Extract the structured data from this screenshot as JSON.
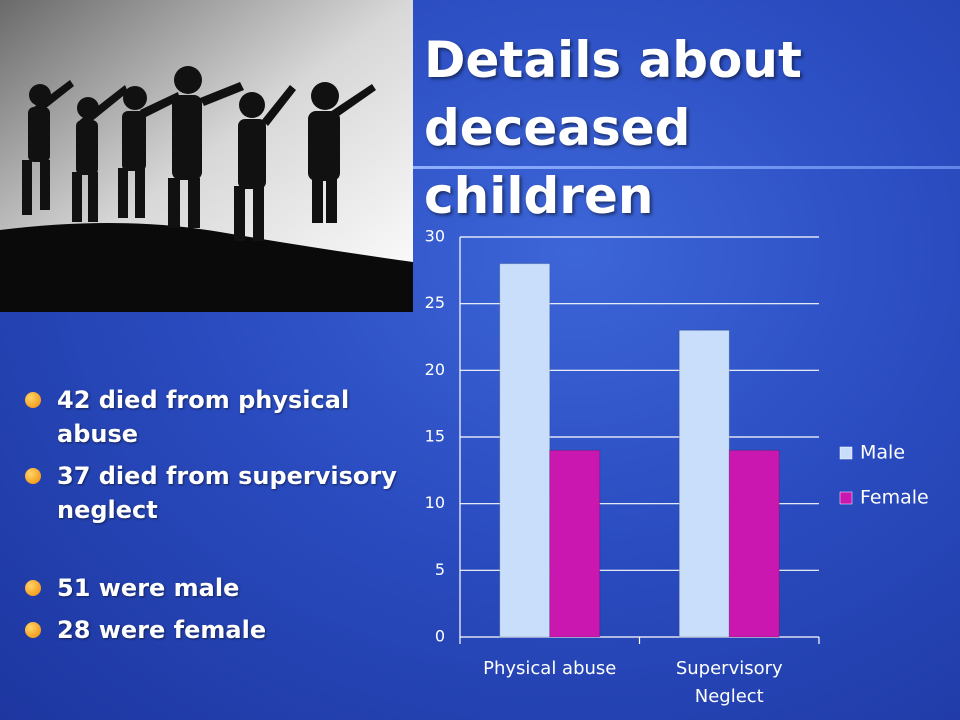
{
  "title": "Details about deceased children",
  "bullets": [
    "42 died from physical abuse",
    "37 died from supervisory neglect",
    "51 were male",
    "28 were female"
  ],
  "chart_data": {
    "type": "bar",
    "categories": [
      "Physical abuse",
      "Supervisory Neglect"
    ],
    "series": [
      {
        "name": "Male",
        "color": "#c9defa",
        "values": [
          28,
          23
        ]
      },
      {
        "name": "Female",
        "color": "#c917b0",
        "values": [
          14,
          14
        ]
      }
    ],
    "ylim": [
      0,
      30
    ],
    "yticks": [
      0,
      5,
      10,
      15,
      20,
      25,
      30
    ],
    "grid": true,
    "legend": "right"
  }
}
